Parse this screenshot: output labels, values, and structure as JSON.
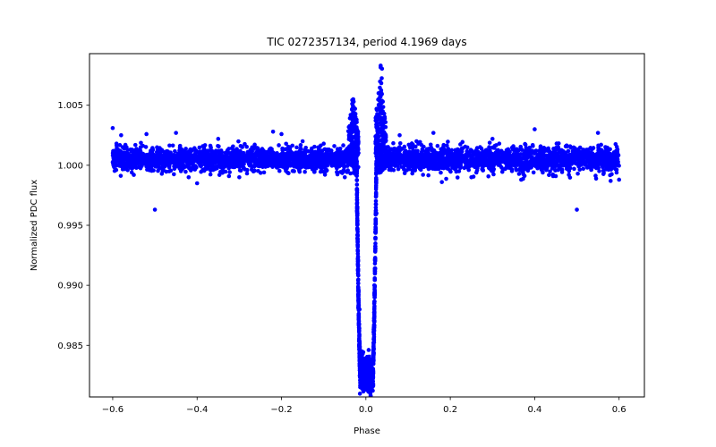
{
  "colors": {
    "points": "#0000ff",
    "axes": "#000000",
    "background": "#ffffff"
  },
  "chart_data": {
    "type": "scatter",
    "title": "TIC 0272357134, period 4.1969 days",
    "xlabel": "Phase",
    "ylabel": "Normalized PDC flux",
    "xlim": [
      -0.655,
      0.66
    ],
    "ylim": [
      0.9807,
      1.0093
    ],
    "xticks": [
      -0.6,
      -0.4,
      -0.2,
      0.0,
      0.2,
      0.4,
      0.6
    ],
    "xtick_labels": [
      "−0.6",
      "−0.4",
      "−0.2",
      "0.0",
      "0.2",
      "0.4",
      "0.6"
    ],
    "yticks": [
      0.985,
      0.99,
      0.995,
      1.0,
      1.005
    ],
    "ytick_labels": [
      "0.985",
      "0.990",
      "0.995",
      "1.000",
      "1.005"
    ],
    "grid": false,
    "series": [
      {
        "name": "phase-folded light curve",
        "baseline": {
          "x_range": [
            -0.6,
            0.6
          ],
          "flux_center": 1.0005,
          "flux_scatter": 0.0009,
          "flux_envelope": [
            0.9986,
            1.0028
          ]
        },
        "transit": {
          "center_phase": 0.0,
          "ingress_phase": -0.022,
          "egress_phase": 0.025,
          "min_flux": 0.982,
          "pre_ingress_peak": {
            "x": -0.03,
            "y": 1.0055
          },
          "post_egress_peak": {
            "x": 0.035,
            "y": 1.0083
          }
        },
        "points": [
          {
            "x": -0.6,
            "y": 1.0031
          },
          {
            "x": -0.58,
            "y": 1.0025
          },
          {
            "x": -0.55,
            "y": 0.9992
          },
          {
            "x": -0.52,
            "y": 1.0026
          },
          {
            "x": -0.5,
            "y": 0.9963
          },
          {
            "x": -0.45,
            "y": 1.0027
          },
          {
            "x": -0.42,
            "y": 0.999
          },
          {
            "x": -0.4,
            "y": 0.9985
          },
          {
            "x": -0.35,
            "y": 1.0022
          },
          {
            "x": -0.3,
            "y": 0.999
          },
          {
            "x": -0.22,
            "y": 1.0028
          },
          {
            "x": -0.2,
            "y": 1.0026
          },
          {
            "x": -0.15,
            "y": 1.002
          },
          {
            "x": -0.1,
            "y": 1.0018
          },
          {
            "x": -0.05,
            "y": 0.999
          },
          {
            "x": -0.04,
            "y": 1.0025
          },
          {
            "x": -0.03,
            "y": 1.004
          },
          {
            "x": -0.03,
            "y": 1.0055
          },
          {
            "x": -0.02,
            "y": 0.996
          },
          {
            "x": -0.015,
            "y": 0.988
          },
          {
            "x": -0.01,
            "y": 0.9845
          },
          {
            "x": 0.0,
            "y": 0.982
          },
          {
            "x": 0.01,
            "y": 0.983
          },
          {
            "x": 0.02,
            "y": 0.99
          },
          {
            "x": 0.025,
            "y": 0.996
          },
          {
            "x": 0.03,
            "y": 1.006
          },
          {
            "x": 0.035,
            "y": 1.0083
          },
          {
            "x": 0.04,
            "y": 1.0045
          },
          {
            "x": 0.08,
            "y": 1.0025
          },
          {
            "x": 0.12,
            "y": 1.002
          },
          {
            "x": 0.16,
            "y": 1.0027
          },
          {
            "x": 0.18,
            "y": 0.9986
          },
          {
            "x": 0.25,
            "y": 0.999
          },
          {
            "x": 0.3,
            "y": 1.0022
          },
          {
            "x": 0.4,
            "y": 1.003
          },
          {
            "x": 0.45,
            "y": 0.9991
          },
          {
            "x": 0.5,
            "y": 0.9963
          },
          {
            "x": 0.55,
            "y": 1.0027
          },
          {
            "x": 0.58,
            "y": 0.9987
          },
          {
            "x": 0.6,
            "y": 0.9988
          }
        ]
      }
    ]
  }
}
